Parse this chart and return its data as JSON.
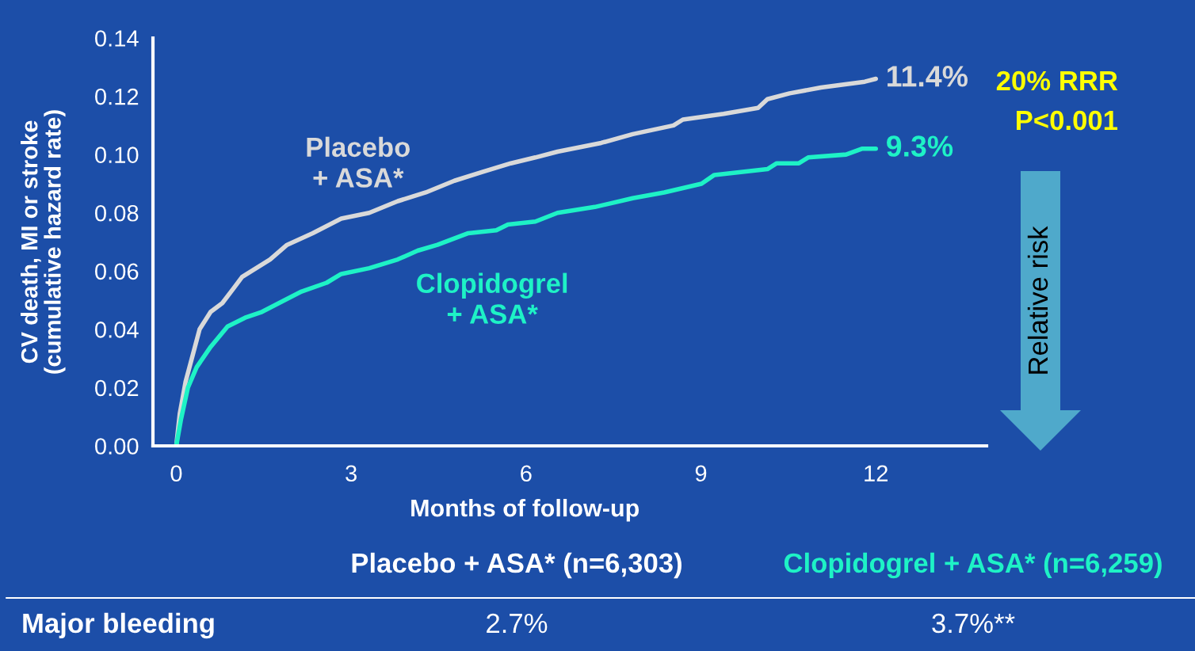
{
  "chart_data": {
    "type": "line",
    "xlabel": "Months of follow-up",
    "ylabel": "CV death, MI or stroke\n(cumulative hazard rate)",
    "xlim": [
      -0.4,
      13.9
    ],
    "xticks": [
      0,
      3,
      6,
      9,
      12
    ],
    "ylim": [
      0,
      0.14
    ],
    "yticks": [
      {
        "value": 0,
        "label": "0.00"
      },
      {
        "value": 0.02,
        "label": "0.02"
      },
      {
        "value": 0.04,
        "label": "0.04"
      },
      {
        "value": 0.06,
        "label": "0.06"
      },
      {
        "value": 0.08,
        "label": "0.08"
      },
      {
        "value": 0.1,
        "label": "0.10"
      },
      {
        "value": 0.12,
        "label": "0.12"
      },
      {
        "value": 0.14,
        "label": "0.14"
      }
    ],
    "series": [
      {
        "name": "Placebo\n+ ASA*",
        "color": "#d9d9d9",
        "x": [
          0,
          0.06,
          0.16,
          0.28,
          0.4,
          0.59,
          0.79,
          0.98,
          1.13,
          1.37,
          1.61,
          1.9,
          2.34,
          2.83,
          3.31,
          3.8,
          4.28,
          4.77,
          5.25,
          5.74,
          6.16,
          6.54,
          7.29,
          7.83,
          8.53,
          8.69,
          9.39,
          9.98,
          10.14,
          10.52,
          11.06,
          11.81,
          12
        ],
        "values": [
          0,
          0.011,
          0.022,
          0.031,
          0.04,
          0.046,
          0.049,
          0.054,
          0.058,
          0.061,
          0.064,
          0.069,
          0.073,
          0.078,
          0.08,
          0.084,
          0.087,
          0.091,
          0.094,
          0.097,
          0.099,
          0.101,
          0.104,
          0.107,
          0.11,
          0.112,
          0.114,
          0.116,
          0.119,
          0.121,
          0.123,
          0.125,
          0.126
        ]
      },
      {
        "name": "Clopidogrel\n+ ASA*",
        "color": "#1ef2c6",
        "x": [
          0,
          0.08,
          0.2,
          0.35,
          0.59,
          0.88,
          1.18,
          1.47,
          1.76,
          2.15,
          2.58,
          2.83,
          3.31,
          3.8,
          4.14,
          4.48,
          5.01,
          5.49,
          5.69,
          6.16,
          6.54,
          7.18,
          7.83,
          8.37,
          9.01,
          9.23,
          10.14,
          10.3,
          10.68,
          10.84,
          11.49,
          11.76,
          12
        ],
        "values": [
          0,
          0.009,
          0.02,
          0.027,
          0.034,
          0.041,
          0.044,
          0.046,
          0.049,
          0.053,
          0.056,
          0.059,
          0.061,
          0.064,
          0.067,
          0.069,
          0.073,
          0.074,
          0.076,
          0.077,
          0.08,
          0.082,
          0.085,
          0.087,
          0.09,
          0.093,
          0.095,
          0.097,
          0.097,
          0.099,
          0.1,
          0.102,
          0.102
        ]
      }
    ],
    "annotations": [
      {
        "text": "11.4%",
        "x": 12,
        "y": 0.126
      },
      {
        "text": "9.3%",
        "x": 12,
        "y": 0.102
      },
      "20% RRR",
      "P<0.001",
      "Relative risk",
      "Placebo + ASA* (n=6,303)",
      "Clopidogrel + ASA* (n=6,259)",
      "Major bleeding",
      "2.7%",
      "3.7%**"
    ],
    "grid": false,
    "legend": false,
    "marker": "none",
    "line_style": "solid"
  }
}
